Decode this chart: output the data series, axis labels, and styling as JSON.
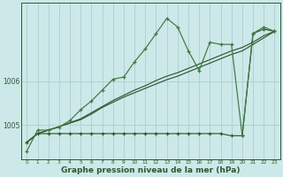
{
  "xlabel": "Graphe pression niveau de la mer (hPa)",
  "bg_color": "#cce8e8",
  "grid_color": "#aacfcf",
  "line_color": "#2d5a2d",
  "line_color2": "#3d7a3d",
  "x_ticks": [
    0,
    1,
    2,
    3,
    4,
    5,
    6,
    7,
    8,
    9,
    10,
    11,
    12,
    13,
    14,
    15,
    16,
    17,
    18,
    19,
    20,
    21,
    22,
    23
  ],
  "ylim": [
    1004.2,
    1007.8
  ],
  "yticks": [
    1005.0,
    1006.0
  ],
  "series_flat": [
    1004.6,
    1004.8,
    1004.8,
    1004.8,
    1004.8,
    1004.8,
    1004.8,
    1004.8,
    1004.8,
    1004.8,
    1004.8,
    1004.8,
    1004.8,
    1004.8,
    1004.8,
    1004.8,
    1004.8,
    1004.8,
    1004.8,
    1004.75,
    1004.75,
    1007.1,
    1007.2,
    1007.15
  ],
  "series_diag1": [
    1004.6,
    1004.8,
    1004.88,
    1004.96,
    1005.04,
    1005.12,
    1005.25,
    1005.4,
    1005.52,
    1005.64,
    1005.74,
    1005.84,
    1005.94,
    1006.04,
    1006.12,
    1006.22,
    1006.32,
    1006.42,
    1006.52,
    1006.62,
    1006.7,
    1006.85,
    1007.0,
    1007.15
  ],
  "series_diag2": [
    1004.6,
    1004.8,
    1004.88,
    1004.96,
    1005.05,
    1005.14,
    1005.28,
    1005.42,
    1005.56,
    1005.68,
    1005.8,
    1005.9,
    1006.02,
    1006.12,
    1006.2,
    1006.3,
    1006.4,
    1006.5,
    1006.6,
    1006.7,
    1006.78,
    1006.9,
    1007.05,
    1007.15
  ],
  "series_zigzag": [
    1004.4,
    1004.88,
    1004.88,
    1004.95,
    1005.1,
    1005.35,
    1005.55,
    1005.8,
    1006.05,
    1006.1,
    1006.45,
    1006.75,
    1007.1,
    1007.45,
    1007.25,
    1006.7,
    1006.25,
    1006.9,
    1006.85,
    1006.85,
    1004.75,
    1007.1,
    1007.25,
    1007.15
  ]
}
